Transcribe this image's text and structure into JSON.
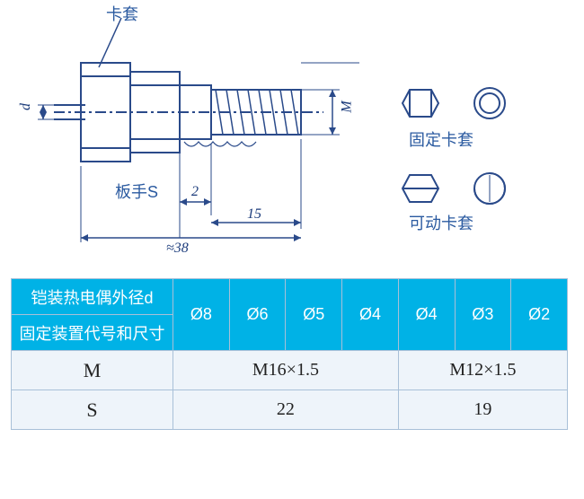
{
  "diagram": {
    "callouts": {
      "sleeve_top": "卡套",
      "wrench_s": "板手S",
      "fixed_sleeve": "固定卡套",
      "movable_sleeve": "可动卡套"
    },
    "dimensions": {
      "d_label": "d",
      "M_label": "M",
      "len_2": "2",
      "len_15": "15",
      "len_38": "≈38"
    },
    "stroke_color": "#2a4a8a",
    "fill_color": "#ffffff",
    "line_width": 2
  },
  "table": {
    "header_row1": "铠装热电偶外径d",
    "header_row2": "固定装置代号和尺寸",
    "diam_prefix": "Ø",
    "diameters": [
      "8",
      "6",
      "5",
      "4",
      "4",
      "3",
      "2"
    ],
    "rows": [
      {
        "label": "M",
        "groups": [
          {
            "span": 4,
            "value": "M16×1.5"
          },
          {
            "span": 3,
            "value": "M12×1.5"
          }
        ]
      },
      {
        "label": "S",
        "groups": [
          {
            "span": 4,
            "value": "22"
          },
          {
            "span": 3,
            "value": "19"
          }
        ]
      }
    ],
    "header_bg": "#00b2e6",
    "header_fg": "#ffffff",
    "cell_bg": "#eef4fa",
    "border": "#a8c0d8"
  }
}
